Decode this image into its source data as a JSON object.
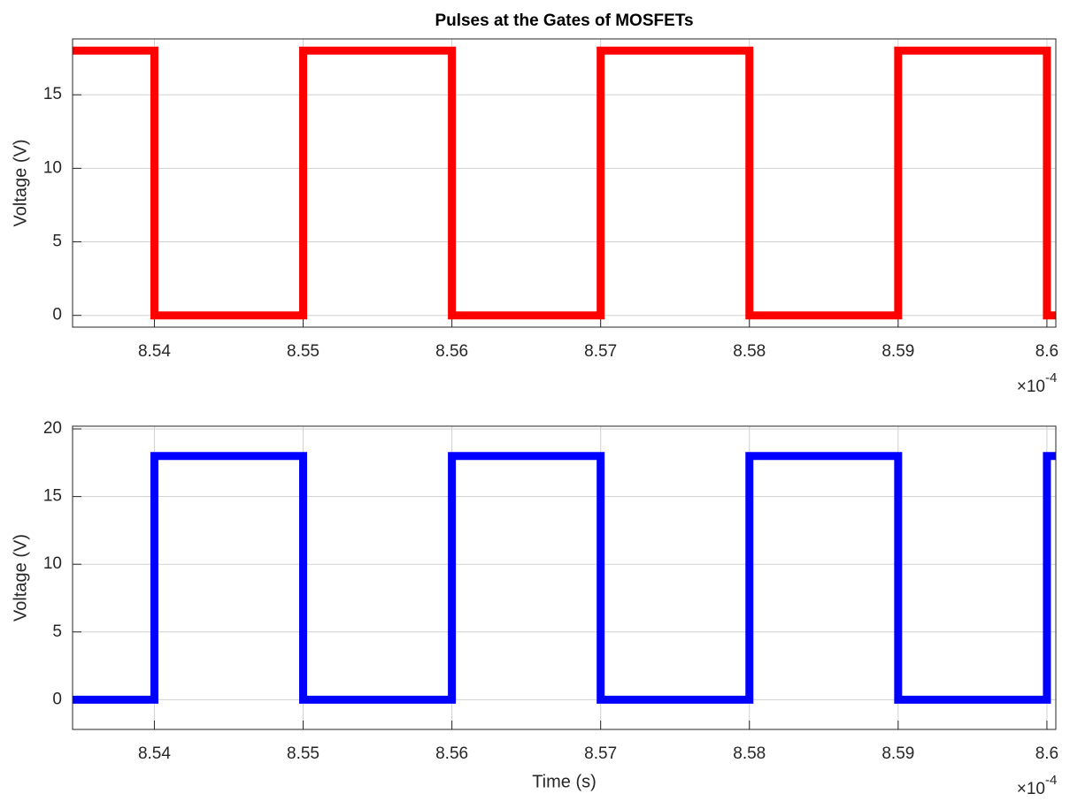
{
  "chart_data": [
    {
      "type": "line",
      "title": "Pulses at the Gates of MOSFETs",
      "y_label": "Voltage (V)",
      "x_multiplier_base": "×10",
      "x_multiplier_exponent": "-4",
      "xlim": [
        8.5345,
        8.6006
      ],
      "xticks": [
        8.54,
        8.55,
        8.56,
        8.57,
        8.58,
        8.59,
        8.6
      ],
      "ylim": [
        -0.8,
        18.8
      ],
      "yticks": [
        0,
        5,
        10,
        15
      ],
      "grid": true,
      "series": [
        {
          "color": "#ff0000",
          "x": [
            8.5345,
            8.54,
            8.54,
            8.55,
            8.55,
            8.56,
            8.56,
            8.57,
            8.57,
            8.58,
            8.58,
            8.59,
            8.59,
            8.6,
            8.6,
            8.6006
          ],
          "values": [
            18,
            18,
            0,
            0,
            18,
            18,
            0,
            0,
            18,
            18,
            0,
            0,
            18,
            18,
            0,
            0
          ]
        }
      ]
    },
    {
      "type": "line",
      "y_label": "Voltage (V)",
      "x_label": "Time (s)",
      "x_multiplier_base": "×10",
      "x_multiplier_exponent": "-4",
      "xlim": [
        8.5345,
        8.6006
      ],
      "xticks": [
        8.54,
        8.55,
        8.56,
        8.57,
        8.58,
        8.59,
        8.6
      ],
      "ylim": [
        -2.2,
        20.2
      ],
      "yticks": [
        0,
        5,
        10,
        15,
        20
      ],
      "grid": true,
      "series": [
        {
          "color": "#0000ff",
          "x": [
            8.5345,
            8.54,
            8.54,
            8.55,
            8.55,
            8.56,
            8.56,
            8.57,
            8.57,
            8.58,
            8.58,
            8.59,
            8.59,
            8.6,
            8.6,
            8.6006
          ],
          "values": [
            0,
            0,
            18,
            18,
            0,
            0,
            18,
            18,
            0,
            0,
            18,
            18,
            0,
            0,
            18,
            18
          ]
        }
      ]
    }
  ]
}
